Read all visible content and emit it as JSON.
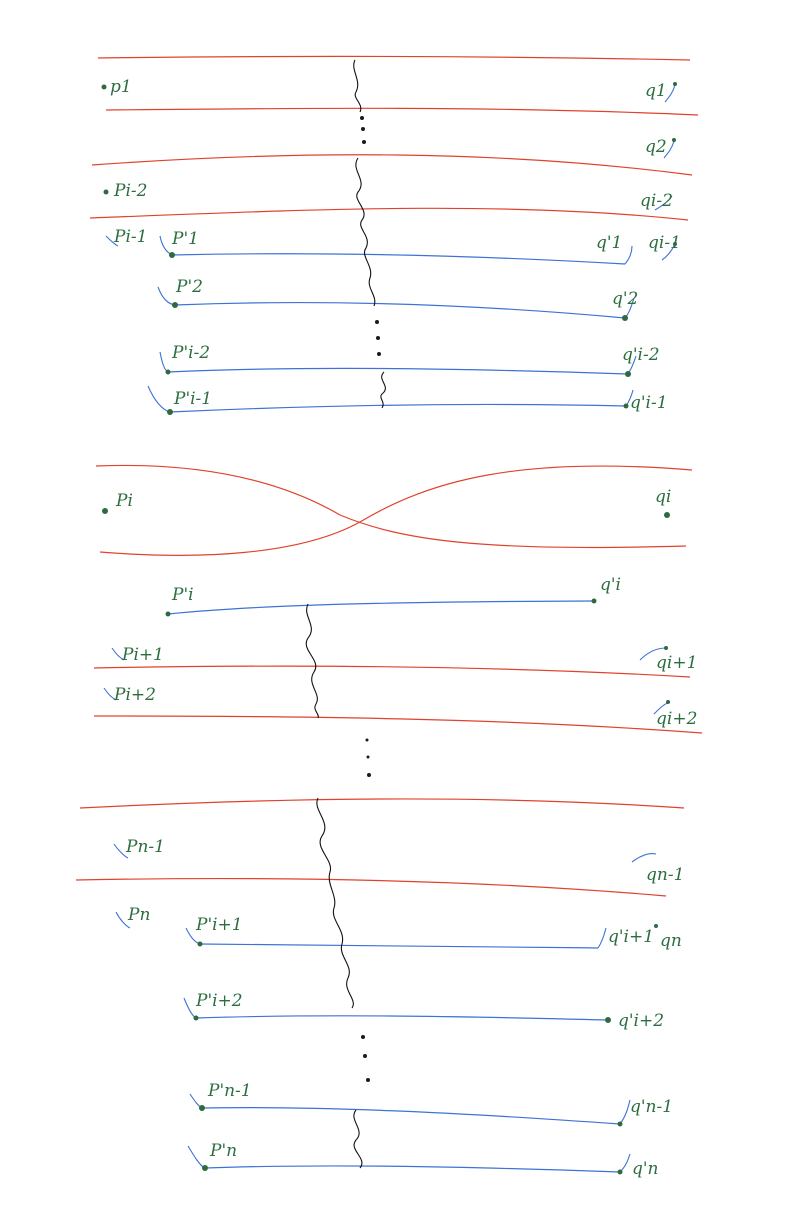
{
  "colors": {
    "red_path": "#e0432d",
    "blue_path": "#3d72d6",
    "endpoint": "#2f6a3e",
    "label": "#2c6e3f",
    "cut": "#111111"
  },
  "labels": {
    "p1": "p1",
    "q1": "q1",
    "q2": "q2",
    "p_i2": "Pi-2",
    "q_i2": "qi-2",
    "p_i1": "Pi-1",
    "q_i1": "qi-1",
    "p1p": "P'1",
    "q1p": "q'1",
    "p2p": "P'2",
    "q2p": "q'2",
    "pi2p": "P'i-2",
    "qi2p": "q'i-2",
    "pi1p": "P'i-1",
    "qi1p": "q'i-1",
    "p_i": "Pi",
    "q_i": "qi",
    "pip": "P'i",
    "qip": "q'i",
    "p_ip1": "Pi+1",
    "q_ip1": "qi+1",
    "p_ip2": "Pi+2",
    "q_ip2": "qi+2",
    "p_n1": "Pn-1",
    "q_n1": "qn-1",
    "p_n": "Pn",
    "q_n": "qn",
    "pip1p": "P'i+1",
    "qip1p": "q'i+1",
    "pip2p": "P'i+2",
    "qip2p": "q'i+2",
    "pn1p": "P'n-1",
    "qn1p": "q'n-1",
    "pnp": "P'n",
    "qnp": "q'n"
  }
}
